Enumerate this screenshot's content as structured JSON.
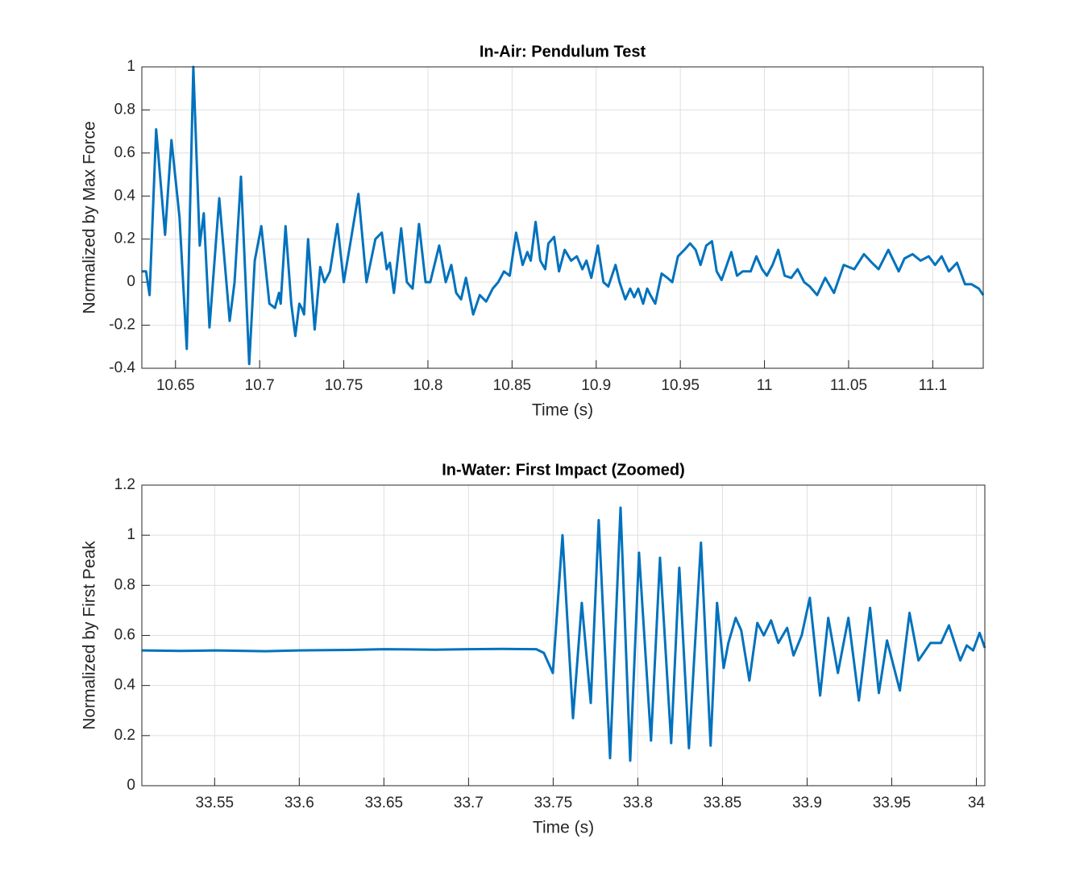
{
  "chart_data": [
    {
      "type": "line",
      "title": "In-Air: Pendulum Test",
      "xlabel": "Time (s)",
      "ylabel": "Normalized by Max Force",
      "color": "#0072BD",
      "grid": true,
      "xlim": [
        10.63,
        11.13
      ],
      "ylim": [
        -0.4,
        1
      ],
      "xticks": [
        10.65,
        10.7,
        10.75,
        10.8,
        10.85,
        10.9,
        10.95,
        11,
        11.05,
        11.1
      ],
      "yticks": [
        -0.4,
        -0.2,
        0,
        0.2,
        0.4,
        0.6,
        0.8,
        1
      ],
      "x": [
        10.63,
        10.6325,
        10.6346,
        10.6385,
        10.6438,
        10.6476,
        10.6524,
        10.6567,
        10.6606,
        10.6644,
        10.6668,
        10.6702,
        10.676,
        10.6822,
        10.6851,
        10.6889,
        10.6938,
        10.6971,
        10.701,
        10.7058,
        10.7091,
        10.7115,
        10.7125,
        10.7154,
        10.7188,
        10.7212,
        10.7236,
        10.725,
        10.7264,
        10.7288,
        10.7327,
        10.736,
        10.7385,
        10.7418,
        10.7462,
        10.75,
        10.7543,
        10.7587,
        10.7635,
        10.7688,
        10.7726,
        10.7755,
        10.7774,
        10.7798,
        10.7841,
        10.7875,
        10.7909,
        10.7947,
        10.7986,
        10.8014,
        10.8067,
        10.8106,
        10.8139,
        10.8168,
        10.8197,
        10.8226,
        10.8269,
        10.8308,
        10.8346,
        10.8385,
        10.8418,
        10.8452,
        10.8486,
        10.8524,
        10.8563,
        10.8591,
        10.8611,
        10.864,
        10.8668,
        10.8697,
        10.8716,
        10.875,
        10.8779,
        10.8813,
        10.8851,
        10.8885,
        10.8918,
        10.8942,
        10.8971,
        10.901,
        10.9043,
        10.9072,
        10.9115,
        10.9139,
        10.9173,
        10.9202,
        10.9226,
        10.925,
        10.9279,
        10.9303,
        10.9322,
        10.9351,
        10.9389,
        10.9423,
        10.9452,
        10.9486,
        10.9524,
        10.9558,
        10.9591,
        10.962,
        10.9654,
        10.9688,
        10.9716,
        10.9745,
        10.9803,
        10.9837,
        10.987,
        10.9918,
        10.9952,
        10.9986,
        11.0014,
        11.0048,
        11.0082,
        11.012,
        11.0159,
        11.0197,
        11.0236,
        11.0269,
        11.0313,
        11.0361,
        11.0413,
        11.0471,
        11.0534,
        11.0591,
        11.0639,
        11.0678,
        11.0736,
        11.0798,
        11.0832,
        11.088,
        11.0928,
        11.0976,
        11.1014,
        11.1053,
        11.1096,
        11.1144,
        11.1192,
        11.1231,
        11.1274,
        11.13
      ],
      "values": [
        0.05,
        0.05,
        -0.06,
        0.71,
        0.22,
        0.66,
        0.3,
        -0.31,
        1.0,
        0.17,
        0.32,
        -0.21,
        0.39,
        -0.18,
        0.0,
        0.49,
        -0.38,
        0.1,
        0.26,
        -0.1,
        -0.12,
        -0.05,
        -0.1,
        0.26,
        -0.1,
        -0.25,
        -0.1,
        -0.12,
        -0.15,
        0.2,
        -0.22,
        0.07,
        0.0,
        0.05,
        0.27,
        0.0,
        0.2,
        0.41,
        0.0,
        0.2,
        0.23,
        0.06,
        0.09,
        -0.05,
        0.25,
        0.0,
        -0.03,
        0.27,
        0.0,
        0.0,
        0.17,
        0.0,
        0.08,
        -0.05,
        -0.08,
        0.02,
        -0.15,
        -0.06,
        -0.09,
        -0.03,
        0.0,
        0.05,
        0.03,
        0.23,
        0.08,
        0.14,
        0.1,
        0.28,
        0.1,
        0.06,
        0.18,
        0.21,
        0.05,
        0.15,
        0.1,
        0.12,
        0.06,
        0.1,
        0.02,
        0.17,
        0.0,
        -0.02,
        0.08,
        0.0,
        -0.08,
        -0.03,
        -0.07,
        -0.03,
        -0.1,
        -0.03,
        -0.06,
        -0.1,
        0.04,
        0.02,
        0.0,
        0.12,
        0.15,
        0.18,
        0.15,
        0.08,
        0.17,
        0.19,
        0.05,
        0.01,
        0.14,
        0.03,
        0.05,
        0.05,
        0.12,
        0.06,
        0.03,
        0.08,
        0.15,
        0.03,
        0.02,
        0.06,
        0.0,
        -0.02,
        -0.06,
        0.02,
        -0.05,
        0.08,
        0.06,
        0.13,
        0.09,
        0.06,
        0.15,
        0.05,
        0.11,
        0.13,
        0.1,
        0.12,
        0.08,
        0.12,
        0.05,
        0.09,
        -0.01,
        -0.01,
        -0.03,
        -0.06
      ]
    },
    {
      "type": "line",
      "title": "In-Water: First Impact (Zoomed)",
      "xlabel": "Time (s)",
      "ylabel": "Normalized by First Peak",
      "color": "#0072BD",
      "grid": true,
      "xlim": [
        33.507,
        34.005
      ],
      "ylim": [
        0,
        1.2
      ],
      "xticks": [
        33.55,
        33.6,
        33.65,
        33.7,
        33.75,
        33.8,
        33.85,
        33.9,
        33.95,
        34
      ],
      "yticks": [
        0,
        0.2,
        0.4,
        0.6,
        0.8,
        1,
        1.2
      ],
      "x": [
        33.507,
        33.53,
        33.55,
        33.58,
        33.6,
        33.63,
        33.65,
        33.68,
        33.7,
        33.72,
        33.74,
        33.7445,
        33.7498,
        33.7555,
        33.7617,
        33.7669,
        33.7722,
        33.7769,
        33.7836,
        33.7898,
        33.7955,
        33.8007,
        33.8078,
        33.8131,
        33.8197,
        33.8245,
        33.8302,
        33.8373,
        33.843,
        33.8468,
        33.8507,
        33.8535,
        33.8578,
        33.8611,
        33.8659,
        33.8706,
        33.8744,
        33.8787,
        33.883,
        33.8882,
        33.892,
        33.8968,
        33.9016,
        33.9077,
        33.9125,
        33.9182,
        33.9244,
        33.9306,
        33.9372,
        33.9424,
        33.9472,
        33.9548,
        33.9605,
        33.9658,
        33.9729,
        33.9791,
        33.9838,
        33.9905,
        33.9943,
        33.9981,
        34.0019,
        34.005
      ],
      "values": [
        0.54,
        0.538,
        0.54,
        0.537,
        0.54,
        0.542,
        0.545,
        0.543,
        0.545,
        0.546,
        0.545,
        0.53,
        0.45,
        1.0,
        0.27,
        0.73,
        0.33,
        1.06,
        0.11,
        1.11,
        0.1,
        0.93,
        0.18,
        0.91,
        0.17,
        0.87,
        0.15,
        0.97,
        0.16,
        0.73,
        0.47,
        0.57,
        0.67,
        0.62,
        0.42,
        0.65,
        0.6,
        0.66,
        0.57,
        0.63,
        0.52,
        0.6,
        0.75,
        0.36,
        0.67,
        0.45,
        0.67,
        0.34,
        0.71,
        0.37,
        0.58,
        0.38,
        0.69,
        0.5,
        0.57,
        0.57,
        0.64,
        0.5,
        0.56,
        0.54,
        0.61,
        0.55
      ]
    }
  ]
}
